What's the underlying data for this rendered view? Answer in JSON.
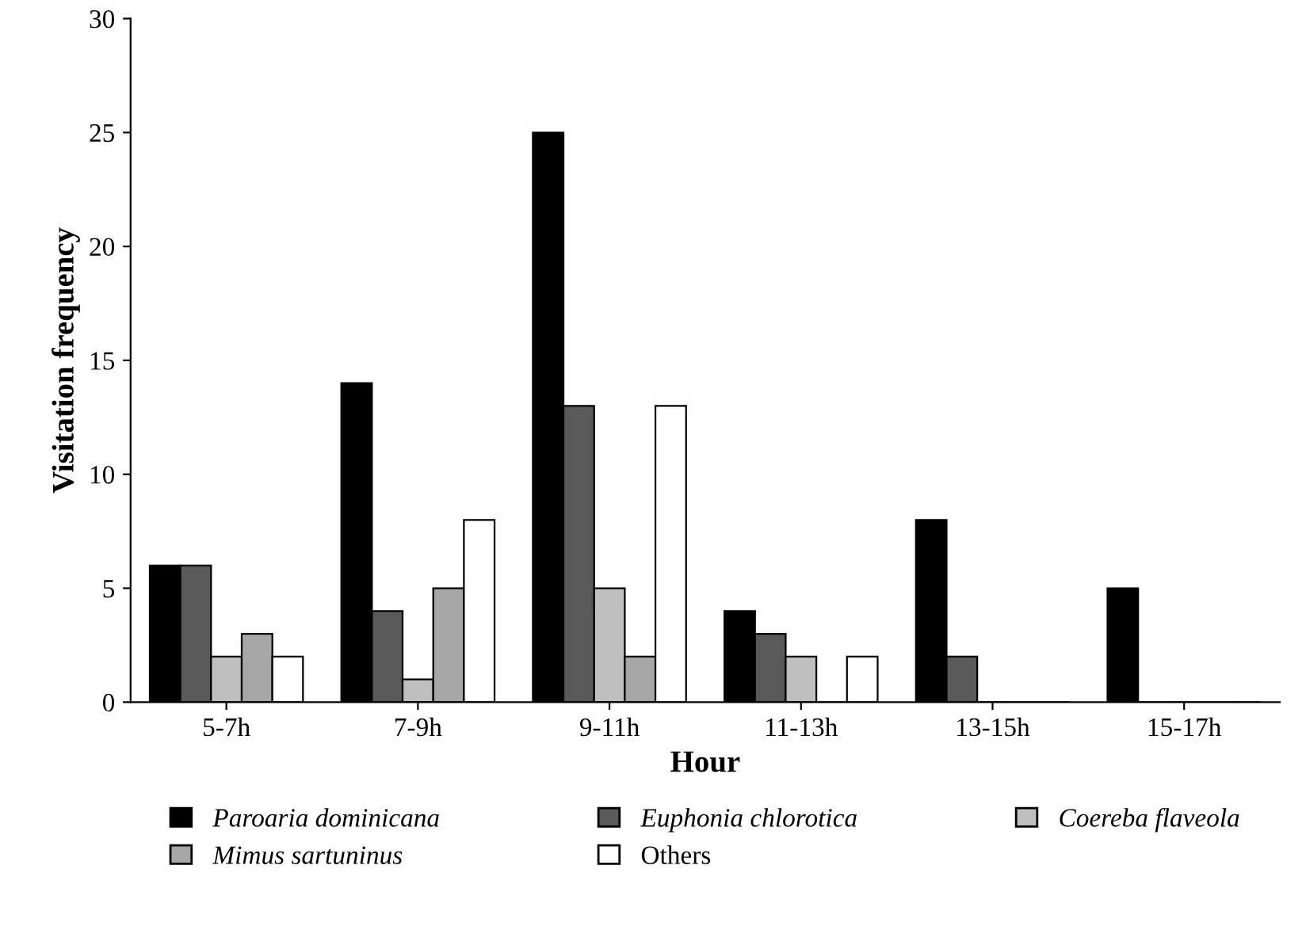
{
  "chart_data": {
    "type": "bar",
    "xlabel": "Hour",
    "ylabel": "Visitation frequency",
    "categories": [
      "5-7h",
      "7-9h",
      "9-11h",
      "11-13h",
      "13-15h",
      "15-17h"
    ],
    "series": [
      {
        "name": "Paroaria dominicana",
        "color": "#000000",
        "values": [
          6,
          14,
          25,
          4,
          8,
          5
        ]
      },
      {
        "name": "Euphonia chlorotica",
        "color": "#595959",
        "values": [
          6,
          4,
          13,
          3,
          2,
          0
        ]
      },
      {
        "name": "Coereba flaveola",
        "color": "#bfbfbf",
        "values": [
          2,
          1,
          5,
          2,
          0,
          0
        ]
      },
      {
        "name": "Mimus sartuninus",
        "color": "#a6a6a6",
        "values": [
          3,
          5,
          2,
          0,
          0,
          0
        ]
      },
      {
        "name": "Others",
        "color": "#ffffff",
        "values": [
          2,
          8,
          13,
          2,
          0,
          0
        ]
      }
    ],
    "ylim": [
      0,
      30
    ],
    "yticks": [
      0,
      5,
      10,
      15,
      20,
      25,
      30
    ],
    "grid": false,
    "legend": "bottom"
  }
}
